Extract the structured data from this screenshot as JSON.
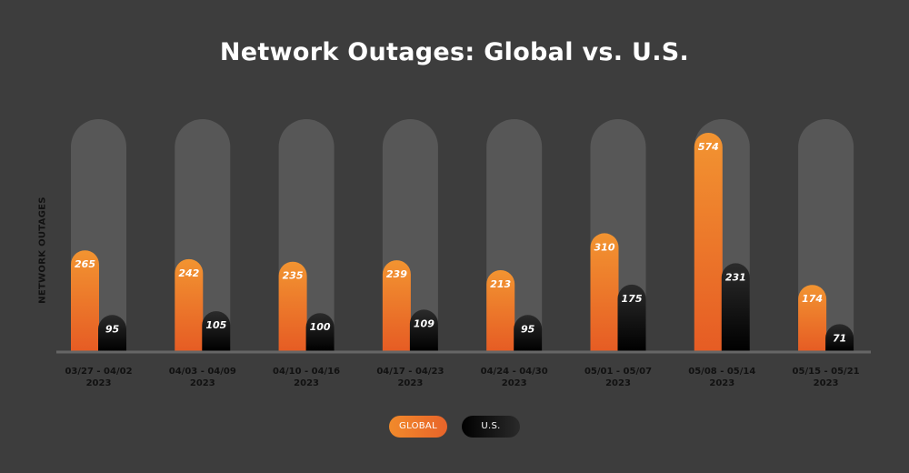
{
  "chart_data": {
    "type": "bar",
    "title": "Network Outages: Global vs. U.S.",
    "ylabel": "NETWORK OUTAGES",
    "xlabel": "",
    "ylim": [
      0,
      600
    ],
    "categories": [
      [
        "03/27 - 04/02",
        "2023"
      ],
      [
        "04/03 - 04/09",
        "2023"
      ],
      [
        "04/10 - 04/16",
        "2023"
      ],
      [
        "04/17 - 04/23",
        "2023"
      ],
      [
        "04/24 - 04/30",
        "2023"
      ],
      [
        "05/01 - 05/07",
        "2023"
      ],
      [
        "05/08 - 05/14",
        "2023"
      ],
      [
        "05/15 - 05/21",
        "2023"
      ]
    ],
    "series": [
      {
        "name": "GLOBAL",
        "values": [
          265,
          242,
          235,
          239,
          213,
          310,
          574,
          174
        ],
        "color": "#f08a2c"
      },
      {
        "name": "U.S.",
        "values": [
          95,
          105,
          100,
          109,
          95,
          175,
          231,
          71
        ],
        "color": "#000000"
      }
    ],
    "legend_position": "bottom-center",
    "grid": false
  },
  "colors": {
    "background": "#3d3d3d",
    "track": "#575757",
    "baseline": "#666666",
    "global_top": "#f29431",
    "global_bottom": "#e65c24",
    "us_top": "#2b2b2b",
    "us_bottom": "#000000"
  }
}
